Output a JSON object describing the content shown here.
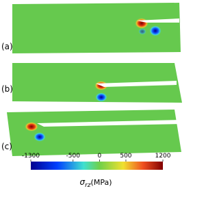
{
  "panels": [
    {
      "label": "(a)"
    },
    {
      "label": "(b)"
    },
    {
      "label": "(c)"
    }
  ],
  "colorbar": {
    "symbol": "σ",
    "subscript": "rz",
    "unit": "(MPa)",
    "lim": [
      -1300,
      1200
    ],
    "ticks": [
      -1300,
      -500,
      0,
      500,
      1200
    ]
  }
}
